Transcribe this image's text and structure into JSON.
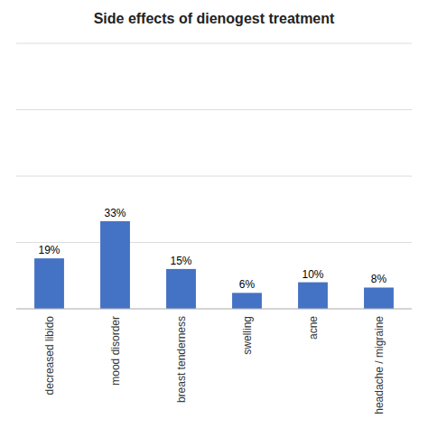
{
  "chart_data": {
    "type": "bar",
    "title": "Side effects of dienogest treatment",
    "categories": [
      "decreased libido",
      "mood disorder",
      "breast tenderness",
      "swelling",
      "acne",
      "headache / migraine"
    ],
    "values": [
      19,
      33,
      15,
      6,
      10,
      8
    ],
    "value_labels": [
      "19%",
      "33%",
      "15%",
      "6%",
      "10%",
      "8%"
    ],
    "data_labels": true,
    "color": "#4472C4",
    "ylim": [
      0,
      100
    ],
    "yticks": [
      0,
      25,
      50,
      75,
      100
    ],
    "grid": true,
    "tick_labels": "x"
  }
}
